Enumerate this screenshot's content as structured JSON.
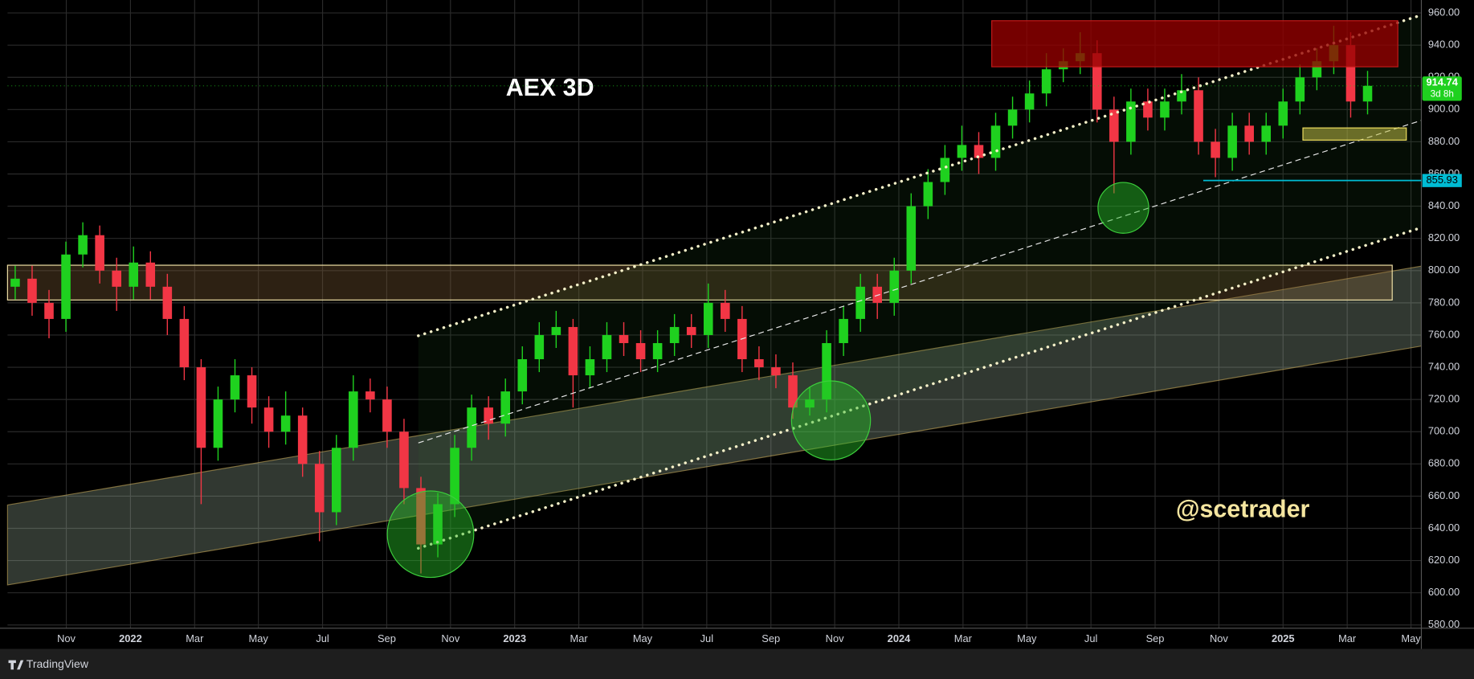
{
  "chart_data": {
    "type": "candlestick",
    "title": "AEX 3D",
    "watermark": "@scetrader",
    "x": [
      2021.7,
      2021.744,
      2021.788,
      2021.832,
      2021.876,
      2021.92,
      2021.964,
      2022.008,
      2022.052,
      2022.096,
      2022.14,
      2022.184,
      2022.228,
      2022.272,
      2022.316,
      2022.36,
      2022.404,
      2022.448,
      2022.492,
      2022.536,
      2022.58,
      2022.624,
      2022.668,
      2022.712,
      2022.756,
      2022.8,
      2022.844,
      2022.888,
      2022.932,
      2022.976,
      2023.02,
      2023.064,
      2023.108,
      2023.152,
      2023.196,
      2023.24,
      2023.284,
      2023.328,
      2023.372,
      2023.416,
      2023.46,
      2023.504,
      2023.548,
      2023.592,
      2023.636,
      2023.68,
      2023.724,
      2023.768,
      2023.812,
      2023.856,
      2023.9,
      2023.944,
      2023.988,
      2024.032,
      2024.076,
      2024.12,
      2024.164,
      2024.208,
      2024.252,
      2024.296,
      2024.34,
      2024.384,
      2024.428,
      2024.472,
      2024.516,
      2024.56,
      2024.604,
      2024.648,
      2024.692,
      2024.736,
      2024.78,
      2024.824,
      2024.868,
      2024.912,
      2024.956,
      2025.0,
      2025.044,
      2025.088,
      2025.132,
      2025.176,
      2025.22
    ],
    "open": [
      790,
      795,
      780,
      770,
      810,
      822,
      800,
      790,
      805,
      790,
      770,
      740,
      690,
      720,
      735,
      715,
      700,
      710,
      680,
      650,
      690,
      725,
      720,
      700,
      665,
      630,
      655,
      690,
      715,
      705,
      725,
      745,
      760,
      765,
      735,
      745,
      760,
      755,
      745,
      755,
      765,
      760,
      780,
      770,
      745,
      740,
      735,
      715,
      720,
      755,
      770,
      790,
      780,
      800,
      840,
      855,
      870,
      878,
      870,
      890,
      900,
      910,
      925,
      930,
      935,
      900,
      880,
      905,
      895,
      905,
      912,
      880,
      870,
      890,
      880,
      890,
      905,
      920,
      930,
      940,
      905
    ],
    "high": [
      803,
      803,
      788,
      818,
      830,
      828,
      808,
      815,
      812,
      798,
      778,
      745,
      728,
      745,
      740,
      722,
      725,
      715,
      688,
      698,
      735,
      733,
      728,
      708,
      672,
      662,
      698,
      723,
      722,
      733,
      753,
      768,
      775,
      770,
      753,
      768,
      768,
      763,
      763,
      773,
      773,
      792,
      788,
      778,
      753,
      748,
      743,
      728,
      763,
      778,
      798,
      798,
      808,
      848,
      863,
      878,
      890,
      886,
      898,
      908,
      918,
      935,
      938,
      948,
      943,
      908,
      913,
      913,
      913,
      922,
      920,
      888,
      898,
      898,
      898,
      913,
      928,
      938,
      952,
      948,
      924
    ],
    "low": [
      782,
      772,
      758,
      762,
      802,
      792,
      775,
      782,
      782,
      760,
      732,
      655,
      682,
      712,
      705,
      690,
      692,
      672,
      632,
      642,
      682,
      712,
      690,
      655,
      612,
      622,
      647,
      682,
      695,
      697,
      717,
      737,
      752,
      715,
      727,
      737,
      747,
      737,
      737,
      747,
      752,
      752,
      762,
      737,
      732,
      727,
      708,
      710,
      712,
      747,
      762,
      770,
      772,
      792,
      832,
      847,
      862,
      860,
      862,
      882,
      892,
      902,
      917,
      922,
      892,
      848,
      872,
      887,
      887,
      897,
      872,
      858,
      862,
      872,
      872,
      882,
      897,
      912,
      922,
      895,
      897
    ],
    "close": [
      795,
      780,
      770,
      810,
      822,
      800,
      790,
      805,
      790,
      770,
      740,
      690,
      720,
      735,
      715,
      700,
      710,
      680,
      650,
      690,
      725,
      720,
      700,
      665,
      630,
      655,
      690,
      715,
      705,
      725,
      745,
      760,
      765,
      735,
      745,
      760,
      755,
      745,
      755,
      765,
      760,
      780,
      770,
      745,
      740,
      735,
      715,
      720,
      755,
      770,
      790,
      780,
      800,
      840,
      855,
      870,
      878,
      870,
      890,
      900,
      910,
      925,
      930,
      935,
      900,
      880,
      905,
      895,
      905,
      912,
      880,
      870,
      890,
      880,
      890,
      905,
      920,
      930,
      940,
      905,
      914.74
    ],
    "up_color": "#1fd11f",
    "down_color": "#f23645",
    "xlim": [
      2021.68,
      2025.36
    ],
    "ylim": [
      578,
      968
    ],
    "xticks": [
      {
        "value": 2021.833,
        "label": "Nov"
      },
      {
        "value": 2022.0,
        "label": "2022"
      },
      {
        "value": 2022.167,
        "label": "Mar"
      },
      {
        "value": 2022.333,
        "label": "May"
      },
      {
        "value": 2022.5,
        "label": "Jul"
      },
      {
        "value": 2022.667,
        "label": "Sep"
      },
      {
        "value": 2022.833,
        "label": "Nov"
      },
      {
        "value": 2023.0,
        "label": "2023"
      },
      {
        "value": 2023.167,
        "label": "Mar"
      },
      {
        "value": 2023.333,
        "label": "May"
      },
      {
        "value": 2023.5,
        "label": "Jul"
      },
      {
        "value": 2023.667,
        "label": "Sep"
      },
      {
        "value": 2023.833,
        "label": "Nov"
      },
      {
        "value": 2024.0,
        "label": "2024"
      },
      {
        "value": 2024.167,
        "label": "Mar"
      },
      {
        "value": 2024.333,
        "label": "May"
      },
      {
        "value": 2024.5,
        "label": "Jul"
      },
      {
        "value": 2024.667,
        "label": "Sep"
      },
      {
        "value": 2024.833,
        "label": "Nov"
      },
      {
        "value": 2025.0,
        "label": "2025"
      },
      {
        "value": 2025.167,
        "label": "Mar"
      },
      {
        "value": 2025.333,
        "label": "May"
      }
    ],
    "yticks": [
      {
        "value": 960,
        "label": "960.00"
      },
      {
        "value": 940,
        "label": "940.00"
      },
      {
        "value": 920,
        "label": "920.00"
      },
      {
        "value": 900,
        "label": "900.00"
      },
      {
        "value": 880,
        "label": "880.00"
      },
      {
        "value": 860,
        "label": "860.00"
      },
      {
        "value": 840,
        "label": "840.00"
      },
      {
        "value": 820,
        "label": "820.00"
      },
      {
        "value": 800,
        "label": "800.00"
      },
      {
        "value": 780,
        "label": "780.00"
      },
      {
        "value": 760,
        "label": "760.00"
      },
      {
        "value": 740,
        "label": "740.00"
      },
      {
        "value": 720,
        "label": "720.00"
      },
      {
        "value": 700,
        "label": "700.00"
      },
      {
        "value": 680,
        "label": "680.00"
      },
      {
        "value": 660,
        "label": "660.00"
      },
      {
        "value": 640,
        "label": "640.00"
      },
      {
        "value": 620,
        "label": "620.00"
      },
      {
        "value": 600,
        "label": "600.00"
      },
      {
        "value": 580,
        "label": "580.00"
      }
    ],
    "grid": true,
    "price_line": {
      "value": 855.93,
      "color": "#00bcd4"
    },
    "countdown": "3d 8h"
  },
  "footer": {
    "brand": "TradingView"
  }
}
